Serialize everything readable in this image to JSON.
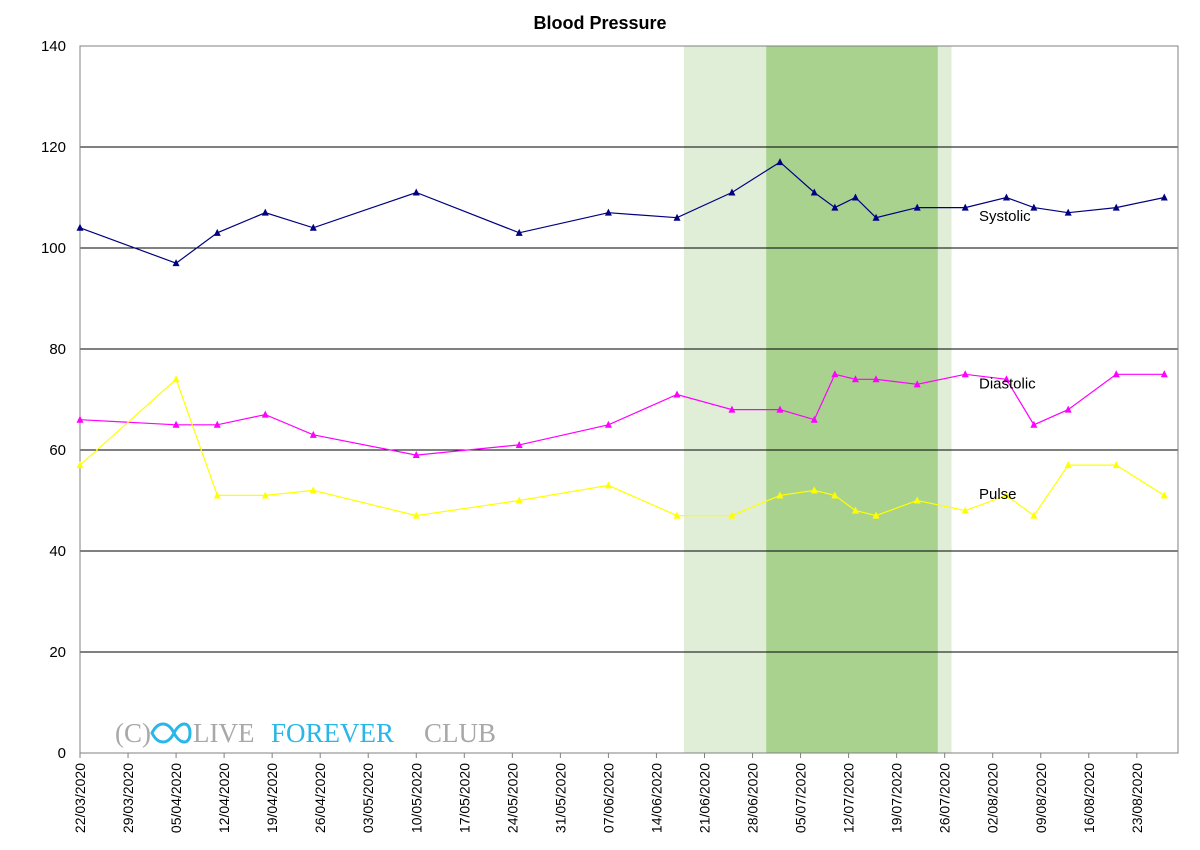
{
  "chart_data": {
    "type": "line",
    "title": "Blood Pressure",
    "ylim": [
      0,
      140
    ],
    "yticks": [
      0,
      20,
      40,
      60,
      80,
      100,
      120,
      140
    ],
    "xlim": [
      "2020-03-22",
      "2020-08-29"
    ],
    "xticks": [
      "22/03/2020",
      "29/03/2020",
      "05/04/2020",
      "12/04/2020",
      "19/04/2020",
      "26/04/2020",
      "03/05/2020",
      "10/05/2020",
      "17/05/2020",
      "24/05/2020",
      "31/05/2020",
      "07/06/2020",
      "14/06/2020",
      "21/06/2020",
      "28/06/2020",
      "05/07/2020",
      "12/07/2020",
      "19/07/2020",
      "26/07/2020",
      "02/08/2020",
      "09/08/2020",
      "16/08/2020",
      "23/08/2020"
    ],
    "grid": true,
    "shaded_regions": [
      {
        "from": "2020-06-18",
        "to": "2020-07-27",
        "color": "#e0eed8"
      },
      {
        "from": "2020-06-30",
        "to": "2020-07-25",
        "color": "#a8d28e"
      }
    ],
    "series": [
      {
        "name": "Systolic",
        "color": "#000080",
        "points": [
          [
            "2020-03-22",
            104
          ],
          [
            "2020-04-05",
            97
          ],
          [
            "2020-04-11",
            103
          ],
          [
            "2020-04-18",
            107
          ],
          [
            "2020-04-25",
            104
          ],
          [
            "2020-05-10",
            111
          ],
          [
            "2020-05-25",
            103
          ],
          [
            "2020-06-07",
            107
          ],
          [
            "2020-06-17",
            106
          ],
          [
            "2020-06-25",
            111
          ],
          [
            "2020-07-02",
            117
          ],
          [
            "2020-07-07",
            111
          ],
          [
            "2020-07-10",
            108
          ],
          [
            "2020-07-13",
            110
          ],
          [
            "2020-07-16",
            106
          ],
          [
            "2020-07-22",
            108
          ],
          [
            "2020-07-29",
            108
          ],
          [
            "2020-08-04",
            110
          ],
          [
            "2020-08-08",
            108
          ],
          [
            "2020-08-13",
            107
          ],
          [
            "2020-08-20",
            108
          ],
          [
            "2020-08-27",
            110
          ]
        ]
      },
      {
        "name": "Diastolic",
        "color": "#ff00ff",
        "points": [
          [
            "2020-03-22",
            66
          ],
          [
            "2020-04-05",
            65
          ],
          [
            "2020-04-11",
            65
          ],
          [
            "2020-04-18",
            67
          ],
          [
            "2020-04-25",
            63
          ],
          [
            "2020-05-10",
            59
          ],
          [
            "2020-05-25",
            61
          ],
          [
            "2020-06-07",
            65
          ],
          [
            "2020-06-17",
            71
          ],
          [
            "2020-06-25",
            68
          ],
          [
            "2020-07-02",
            68
          ],
          [
            "2020-07-07",
            66
          ],
          [
            "2020-07-10",
            75
          ],
          [
            "2020-07-13",
            74
          ],
          [
            "2020-07-16",
            74
          ],
          [
            "2020-07-22",
            73
          ],
          [
            "2020-07-29",
            75
          ],
          [
            "2020-08-04",
            74
          ],
          [
            "2020-08-08",
            65
          ],
          [
            "2020-08-13",
            68
          ],
          [
            "2020-08-20",
            75
          ],
          [
            "2020-08-27",
            75
          ]
        ]
      },
      {
        "name": "Pulse",
        "color": "#ffff00",
        "points": [
          [
            "2020-03-22",
            57
          ],
          [
            "2020-04-05",
            74
          ],
          [
            "2020-04-11",
            51
          ],
          [
            "2020-04-18",
            51
          ],
          [
            "2020-04-25",
            52
          ],
          [
            "2020-05-10",
            47
          ],
          [
            "2020-05-25",
            50
          ],
          [
            "2020-06-07",
            53
          ],
          [
            "2020-06-17",
            47
          ],
          [
            "2020-06-25",
            47
          ],
          [
            "2020-07-02",
            51
          ],
          [
            "2020-07-07",
            52
          ],
          [
            "2020-07-10",
            51
          ],
          [
            "2020-07-13",
            48
          ],
          [
            "2020-07-16",
            47
          ],
          [
            "2020-07-22",
            50
          ],
          [
            "2020-07-29",
            48
          ],
          [
            "2020-08-04",
            51
          ],
          [
            "2020-08-08",
            47
          ],
          [
            "2020-08-13",
            57
          ],
          [
            "2020-08-20",
            57
          ],
          [
            "2020-08-27",
            51
          ]
        ]
      }
    ]
  },
  "watermark": {
    "copyright": "(C)",
    "word1": "LIVE",
    "word2": "FOREVER",
    "word3": "CLUB",
    "color_grey": "#a8a8a8",
    "color_blue": "#29b6e8"
  }
}
